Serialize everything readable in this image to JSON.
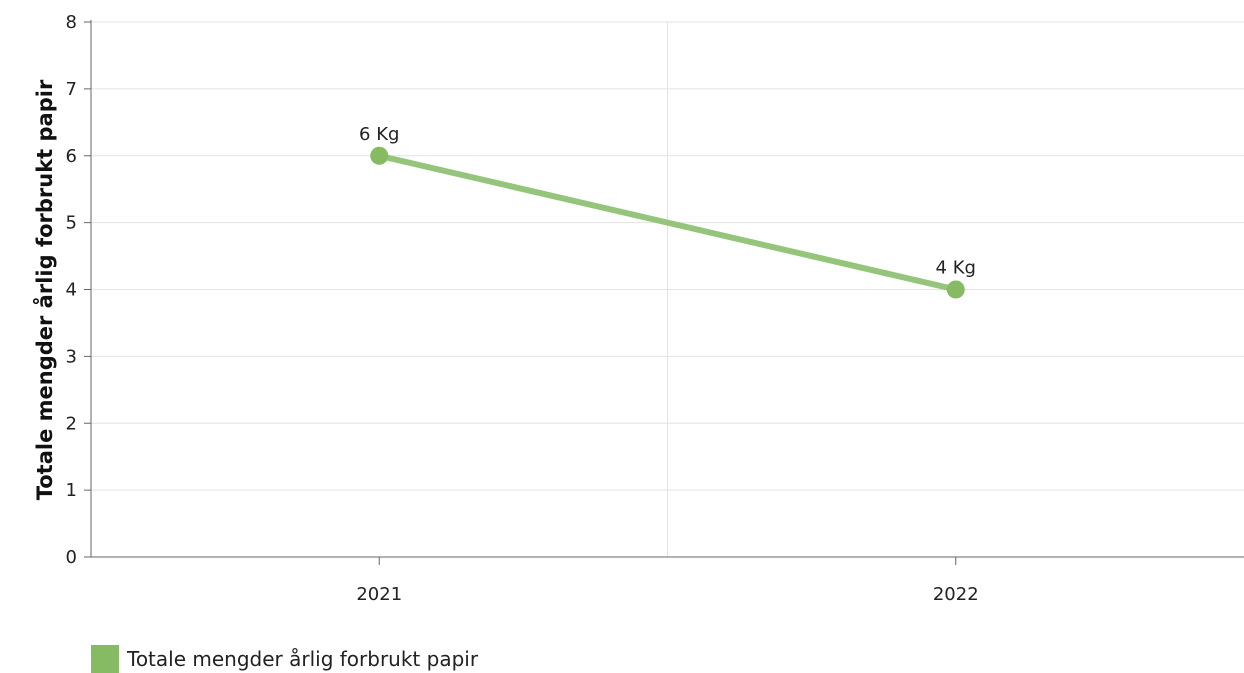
{
  "chart_data": {
    "type": "line",
    "title": "",
    "xlabel": "",
    "ylabel": "Totale mengder årlig forbrukt papir",
    "categories": [
      "2021",
      "2022"
    ],
    "ylim": [
      0,
      8
    ],
    "yticks": [
      "0",
      "1",
      "2",
      "3",
      "4",
      "5",
      "6",
      "7",
      "8"
    ],
    "series": [
      {
        "name": "Totale mengder årlig forbrukt papir",
        "values": [
          6,
          4
        ],
        "labels": [
          "6 Kg",
          "4 Kg"
        ],
        "color": "#86bb63",
        "line_color": "#94c57a"
      }
    ],
    "grid": true,
    "legend_position": "bottom-left"
  }
}
